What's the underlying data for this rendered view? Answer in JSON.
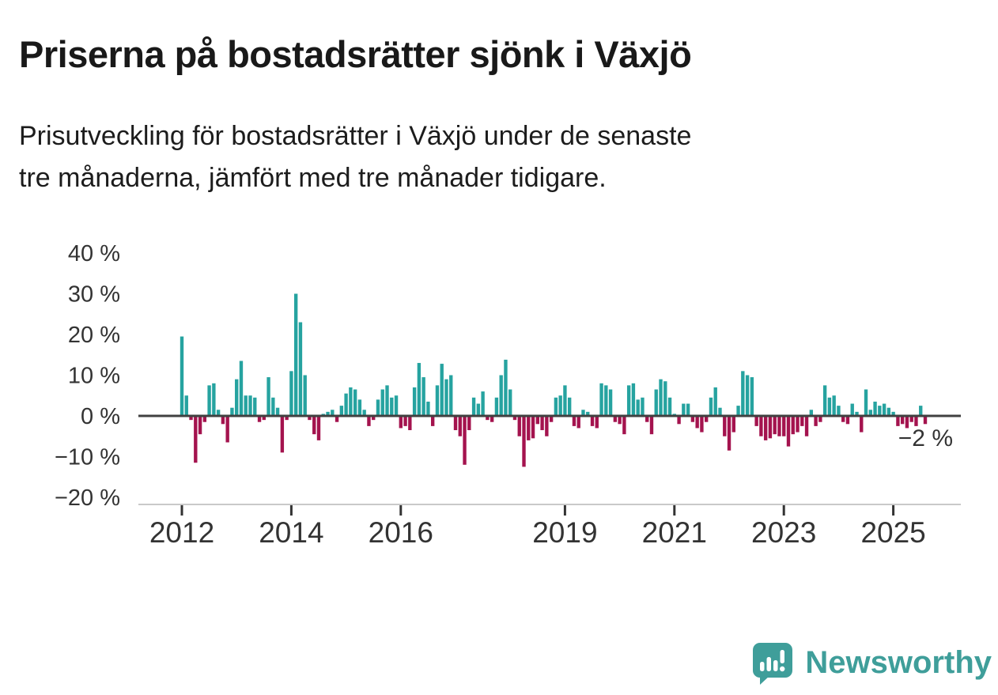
{
  "header": {
    "title": "Priserna på bostadsrätter sjönk i Växjö",
    "subtitle_lines": [
      "Prisutveckling för bostadsrätter i Växjö under de senaste",
      "tre månaderna, jämfört med tre månader tidigare."
    ]
  },
  "chart_data": {
    "type": "bar",
    "title": "Priserna på bostadsrätter sjönk i Växjö",
    "subtitle": "Prisutveckling för bostadsrätter i Växjö under de senaste tre månaderna, jämfört med tre månader tidigare.",
    "unit": "%",
    "start_year": 2012,
    "start_month": 1,
    "xlabel": "",
    "ylabel": "",
    "ylim": [
      -22,
      42
    ],
    "grid": false,
    "values": [
      19.5,
      5,
      -1,
      -11.5,
      -4.5,
      -1.5,
      7.5,
      8,
      1.5,
      -2,
      -6.5,
      2,
      9,
      13.5,
      5,
      5,
      4.5,
      -1.5,
      -1,
      9.5,
      4.5,
      2,
      -9,
      -1,
      11,
      30,
      23,
      10,
      -1,
      -4.5,
      -6,
      0.5,
      1,
      1.5,
      -1.5,
      2.5,
      5.5,
      7,
      6.5,
      4,
      1.5,
      -2.5,
      -1,
      4,
      6.5,
      7.5,
      4.5,
      5,
      -3,
      -2.5,
      -3.5,
      7,
      13,
      9.5,
      3.5,
      -2.5,
      7.5,
      12.8,
      9,
      10,
      -3.5,
      -5,
      -12,
      -3.5,
      4.5,
      3,
      6,
      -1,
      -1.5,
      4.5,
      10,
      13.8,
      6.5,
      -1,
      -5,
      -12.5,
      -6,
      -5.5,
      -2,
      -3.5,
      -5,
      -1.5,
      4.5,
      5,
      7.5,
      4.5,
      -2.5,
      -3,
      1.5,
      1,
      -2.5,
      -3,
      8,
      7.5,
      6.5,
      -1.5,
      -2,
      -4.5,
      7.5,
      8,
      4,
      4.5,
      -1.5,
      -4.5,
      6.5,
      9,
      8.5,
      4.5,
      0.5,
      -2,
      3,
      3,
      -1.5,
      -3,
      -4,
      -1.5,
      4.5,
      7,
      2,
      -5,
      -8.5,
      -4,
      2.5,
      11,
      10,
      9.5,
      -2.5,
      -5,
      -6,
      -5.5,
      -4.5,
      -5,
      -5,
      -7.5,
      -4.5,
      -4,
      -2.5,
      -5,
      1.5,
      -2.5,
      -1.5,
      7.5,
      4.5,
      5,
      2.5,
      -1.5,
      -2,
      3,
      1,
      -4,
      6.5,
      1.5,
      3.5,
      2.5,
      3,
      2,
      1,
      -2.5,
      -2,
      -3,
      -1.5,
      -2.5,
      2.5,
      -2
    ],
    "yticks": [
      {
        "value": 40,
        "label": "40 %"
      },
      {
        "value": 30,
        "label": "30 %"
      },
      {
        "value": 20,
        "label": "20 %"
      },
      {
        "value": 10,
        "label": "10 %"
      },
      {
        "value": 0,
        "label": "0 %"
      },
      {
        "value": -10,
        "label": "−10 %"
      },
      {
        "value": -20,
        "label": "−20 %"
      }
    ],
    "xticks": [
      {
        "year": 2012,
        "label": "2012"
      },
      {
        "year": 2014,
        "label": "2014"
      },
      {
        "year": 2016,
        "label": "2016"
      },
      {
        "year": 2019,
        "label": "2019"
      },
      {
        "year": 2021,
        "label": "2021"
      },
      {
        "year": 2023,
        "label": "2023"
      },
      {
        "year": 2025,
        "label": "2025"
      }
    ],
    "annotation": {
      "text": "−2 %",
      "value": -2
    },
    "colors": {
      "positive": "#26a3a0",
      "negative": "#a4134e",
      "baseline": "#404040",
      "axis_line": "#c9c9c9",
      "tick": "#333333",
      "label": "#333333"
    },
    "legend": null
  },
  "footer": {
    "brand": "Newsworthy",
    "logo_icon": "bar-chart-speech-bubble-icon",
    "brand_color": "#3f9e9a"
  }
}
